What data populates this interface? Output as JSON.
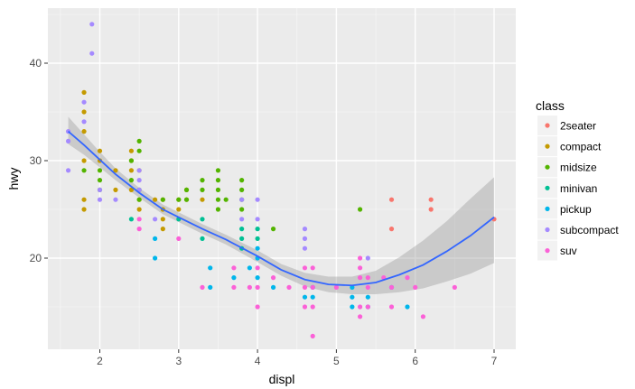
{
  "chart_data": {
    "type": "scatter",
    "title": "",
    "xlabel": "displ",
    "ylabel": "hwy",
    "xlim": [
      1.33,
      7.27
    ],
    "ylim": [
      10.4,
      45.4
    ],
    "x_ticks": [
      2,
      3,
      4,
      5,
      6,
      7
    ],
    "y_ticks": [
      20,
      30,
      40
    ],
    "grid": true,
    "panel_background": "#ebebeb",
    "legend": {
      "title": "class",
      "position": "right",
      "entries": [
        {
          "label": "2seater",
          "color": "#F8766D"
        },
        {
          "label": "compact",
          "color": "#C49A00"
        },
        {
          "label": "midsize",
          "color": "#53B400"
        },
        {
          "label": "minivan",
          "color": "#00C094"
        },
        {
          "label": "pickup",
          "color": "#00B6EB"
        },
        {
          "label": "subcompact",
          "color": "#A58AFF"
        },
        {
          "label": "suv",
          "color": "#FB61D7"
        }
      ]
    },
    "series": [
      {
        "name": "2seater",
        "points": [
          [
            5.7,
            26
          ],
          [
            5.7,
            23
          ],
          [
            6.2,
            26
          ],
          [
            6.2,
            25
          ],
          [
            7.0,
            24
          ]
        ]
      },
      {
        "name": "compact",
        "points": [
          [
            1.8,
            37
          ],
          [
            1.8,
            35
          ],
          [
            1.8,
            33
          ],
          [
            1.8,
            30
          ],
          [
            1.8,
            26
          ],
          [
            1.8,
            25
          ],
          [
            2.0,
            31
          ],
          [
            2.0,
            30
          ],
          [
            2.2,
            29
          ],
          [
            2.2,
            27
          ],
          [
            2.4,
            31
          ],
          [
            2.4,
            30
          ],
          [
            2.4,
            29
          ],
          [
            2.4,
            27
          ],
          [
            2.5,
            29
          ],
          [
            2.5,
            26
          ],
          [
            2.5,
            25
          ],
          [
            2.7,
            26
          ],
          [
            2.8,
            26
          ],
          [
            2.8,
            25
          ],
          [
            2.8,
            24
          ],
          [
            2.8,
            23
          ],
          [
            3.0,
            26
          ],
          [
            3.0,
            25
          ],
          [
            3.1,
            27
          ],
          [
            3.1,
            26
          ],
          [
            3.3,
            26
          ]
        ]
      },
      {
        "name": "midsize",
        "points": [
          [
            1.8,
            29
          ],
          [
            2.0,
            29
          ],
          [
            2.0,
            28
          ],
          [
            2.0,
            27
          ],
          [
            2.4,
            30
          ],
          [
            2.4,
            28
          ],
          [
            2.5,
            32
          ],
          [
            2.5,
            31
          ],
          [
            2.5,
            27
          ],
          [
            2.5,
            26
          ],
          [
            2.8,
            26
          ],
          [
            3.0,
            26
          ],
          [
            3.1,
            27
          ],
          [
            3.1,
            26
          ],
          [
            3.3,
            28
          ],
          [
            3.3,
            27
          ],
          [
            3.5,
            29
          ],
          [
            3.5,
            28
          ],
          [
            3.5,
            27
          ],
          [
            3.5,
            26
          ],
          [
            3.5,
            25
          ],
          [
            3.6,
            26
          ],
          [
            3.8,
            28
          ],
          [
            3.8,
            27
          ],
          [
            3.8,
            26
          ],
          [
            3.8,
            25
          ],
          [
            4.2,
            23
          ],
          [
            5.3,
            25
          ]
        ]
      },
      {
        "name": "minivan",
        "points": [
          [
            2.4,
            24
          ],
          [
            3.0,
            24
          ],
          [
            3.3,
            24
          ],
          [
            3.3,
            22
          ],
          [
            3.8,
            23
          ],
          [
            3.8,
            22
          ],
          [
            3.8,
            21
          ],
          [
            4.0,
            23
          ],
          [
            4.0,
            22
          ]
        ]
      },
      {
        "name": "pickup",
        "points": [
          [
            2.7,
            22
          ],
          [
            2.7,
            20
          ],
          [
            3.4,
            19
          ],
          [
            3.4,
            17
          ],
          [
            3.7,
            18
          ],
          [
            4.0,
            20
          ],
          [
            4.0,
            18
          ],
          [
            4.2,
            17
          ],
          [
            4.7,
            17
          ],
          [
            4.7,
            16
          ],
          [
            4.6,
            16
          ],
          [
            5.2,
            17
          ],
          [
            5.2,
            16
          ],
          [
            5.2,
            15
          ],
          [
            5.4,
            16
          ],
          [
            5.4,
            15
          ],
          [
            5.9,
            15
          ],
          [
            5.7,
            17
          ],
          [
            3.9,
            19
          ],
          [
            4.0,
            21
          ]
        ]
      },
      {
        "name": "subcompact",
        "points": [
          [
            1.6,
            33
          ],
          [
            1.6,
            32
          ],
          [
            1.6,
            29
          ],
          [
            1.8,
            36
          ],
          [
            1.8,
            34
          ],
          [
            1.9,
            44
          ],
          [
            1.9,
            41
          ],
          [
            2.0,
            27
          ],
          [
            2.0,
            26
          ],
          [
            2.2,
            26
          ],
          [
            2.5,
            29
          ],
          [
            2.5,
            28
          ],
          [
            2.5,
            27
          ],
          [
            2.7,
            24
          ],
          [
            3.8,
            26
          ],
          [
            3.8,
            24
          ],
          [
            4.0,
            26
          ],
          [
            4.0,
            24
          ],
          [
            4.6,
            23
          ],
          [
            4.6,
            22
          ],
          [
            4.6,
            21
          ],
          [
            5.4,
            20
          ]
        ]
      },
      {
        "name": "suv",
        "points": [
          [
            2.5,
            24
          ],
          [
            2.5,
            23
          ],
          [
            3.0,
            22
          ],
          [
            3.3,
            17
          ],
          [
            3.7,
            19
          ],
          [
            3.7,
            17
          ],
          [
            3.9,
            17
          ],
          [
            4.0,
            19
          ],
          [
            4.0,
            17
          ],
          [
            4.0,
            15
          ],
          [
            4.2,
            18
          ],
          [
            4.4,
            17
          ],
          [
            4.6,
            19
          ],
          [
            4.6,
            17
          ],
          [
            4.6,
            15
          ],
          [
            4.7,
            19
          ],
          [
            4.7,
            17
          ],
          [
            4.7,
            15
          ],
          [
            4.7,
            12
          ],
          [
            5.0,
            17
          ],
          [
            5.3,
            20
          ],
          [
            5.3,
            19
          ],
          [
            5.3,
            18
          ],
          [
            5.3,
            15
          ],
          [
            5.3,
            14
          ],
          [
            5.4,
            18
          ],
          [
            5.4,
            17
          ],
          [
            5.4,
            15
          ],
          [
            5.6,
            18
          ],
          [
            5.7,
            17
          ],
          [
            5.7,
            15
          ],
          [
            5.9,
            18
          ],
          [
            6.0,
            17
          ],
          [
            6.1,
            14
          ],
          [
            6.5,
            17
          ]
        ]
      }
    ],
    "smooth": {
      "method": "loess",
      "color": "#3366FF",
      "band_color": "#999999",
      "x": [
        1.6,
        1.8,
        2.0,
        2.2,
        2.5,
        2.8,
        3.0,
        3.3,
        3.6,
        4.0,
        4.3,
        4.6,
        4.9,
        5.2,
        5.5,
        5.8,
        6.1,
        6.4,
        6.7,
        7.0
      ],
      "y": [
        33.0,
        31.6,
        30.1,
        28.6,
        26.7,
        25.0,
        24.2,
        23.0,
        21.9,
        20.2,
        18.8,
        17.8,
        17.3,
        17.2,
        17.5,
        18.3,
        19.3,
        20.7,
        22.3,
        24.2
      ],
      "lo": [
        31.7,
        30.6,
        29.3,
        28.0,
        26.2,
        24.5,
        23.7,
        22.5,
        21.4,
        19.6,
        18.2,
        17.1,
        16.5,
        16.3,
        16.3,
        16.5,
        16.9,
        17.6,
        18.4,
        19.5
      ],
      "hi": [
        34.5,
        32.7,
        30.9,
        29.2,
        27.2,
        25.5,
        24.7,
        23.5,
        22.4,
        20.8,
        19.4,
        18.5,
        18.1,
        18.1,
        18.7,
        20.1,
        21.8,
        23.8,
        26.1,
        28.3
      ]
    }
  }
}
